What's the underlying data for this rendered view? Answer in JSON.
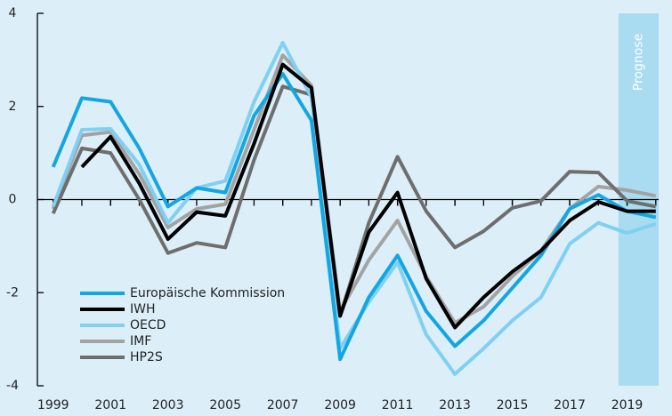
{
  "chart_data": {
    "type": "line",
    "x": [
      1999,
      2000,
      2001,
      2002,
      2003,
      2004,
      2005,
      2006,
      2007,
      2008,
      2009,
      2010,
      2011,
      2012,
      2013,
      2014,
      2015,
      2016,
      2017,
      2018,
      2019,
      2020
    ],
    "series": [
      {
        "name": "Europäische Kommission",
        "color": "#14a6e0",
        "values": [
          0.7,
          2.18,
          2.1,
          1.1,
          -0.15,
          0.25,
          0.15,
          1.8,
          2.7,
          1.7,
          -3.43,
          -2.1,
          -1.2,
          -2.4,
          -3.15,
          -2.6,
          -1.9,
          -1.2,
          -0.2,
          0.1,
          -0.25,
          -0.38
        ]
      },
      {
        "name": "IWH",
        "color": "#000000",
        "values": [
          null,
          0.7,
          1.35,
          0.35,
          -0.85,
          -0.27,
          -0.35,
          1.2,
          2.9,
          2.4,
          -2.5,
          -0.7,
          0.15,
          -1.7,
          -2.75,
          -2.1,
          -1.55,
          -1.1,
          -0.45,
          -0.05,
          -0.25,
          -0.25
        ]
      },
      {
        "name": "OECD",
        "color": "#7fd0f2",
        "values": [
          -0.15,
          1.5,
          1.52,
          0.75,
          -0.5,
          0.25,
          0.4,
          2.1,
          3.37,
          2.2,
          -3.2,
          -2.2,
          -1.35,
          -2.9,
          -3.75,
          -3.2,
          -2.6,
          -2.1,
          -0.95,
          -0.5,
          -0.72,
          -0.52
        ]
      },
      {
        "name": "IMF",
        "color": "#a3a3a3",
        "values": [
          -0.2,
          1.38,
          1.45,
          0.55,
          -0.6,
          -0.2,
          -0.1,
          1.5,
          3.1,
          2.45,
          -2.4,
          -1.3,
          -0.45,
          -1.65,
          -2.65,
          -2.3,
          -1.65,
          -1.1,
          -0.2,
          0.28,
          0.2,
          0.08
        ]
      },
      {
        "name": "HP2S",
        "color": "#6e6e6e",
        "values": [
          -0.3,
          1.1,
          1.0,
          0.0,
          -1.15,
          -0.93,
          -1.03,
          0.85,
          2.43,
          2.25,
          -2.5,
          -0.5,
          0.92,
          -0.25,
          -1.03,
          -0.68,
          -0.18,
          -0.03,
          0.6,
          0.58,
          -0.03,
          -0.15
        ]
      }
    ],
    "xlim": [
      1998.45,
      2020.1
    ],
    "xticks": [
      1999,
      2001,
      2003,
      2005,
      2007,
      2009,
      2011,
      2013,
      2015,
      2017,
      2019
    ],
    "xminorticks": [
      1999,
      2000,
      2001,
      2002,
      2003,
      2004,
      2005,
      2006,
      2007,
      2008,
      2009,
      2010,
      2011,
      2012,
      2013,
      2014,
      2015,
      2016,
      2017,
      2018,
      2019,
      2020
    ],
    "ylim": [
      -4,
      4
    ],
    "yticks": [
      -4,
      -2,
      0,
      2,
      4
    ],
    "forecast": {
      "label": "Prognose",
      "from": 2018.7,
      "to": 2020.1,
      "color": "#a9dcf1"
    },
    "legend": "lower left",
    "grid": false
  }
}
